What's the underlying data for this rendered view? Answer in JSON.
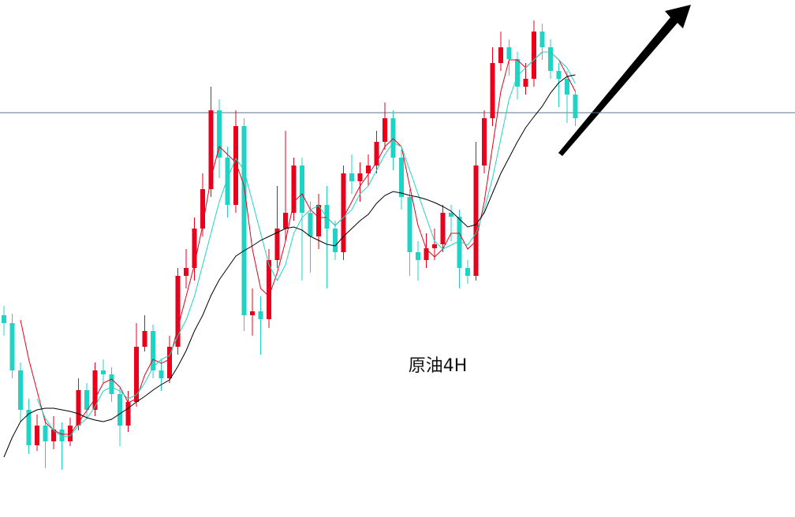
{
  "chart_data": {
    "type": "candlestick",
    "annotation": "原油4H",
    "ylim": [
      0,
      656
    ],
    "up_color": "#e8001c",
    "down_color": "#1fd4c4",
    "reference_line": 513,
    "reference_color": "#5a7490",
    "open": [
      256,
      246,
      186,
      136,
      91,
      116,
      96,
      111,
      96,
      116,
      161,
      136,
      186,
      181,
      156,
      116,
      146,
      216,
      236,
      186,
      176,
      216,
      306,
      316,
      366,
      416,
      516,
      456,
      396,
      496,
      256,
      261,
      251,
      326,
      366,
      386,
      446,
      386,
      356,
      396,
      366,
      336,
      436,
      426,
      436,
      446,
      476,
      506,
      456,
      406,
      336,
      326,
      341,
      346,
      386,
      381,
      316,
      306,
      446,
      506,
      576,
      596,
      581,
      546,
      556,
      616,
      596,
      566,
      556,
      536
    ],
    "high": [
      268,
      258,
      196,
      150,
      130,
      124,
      128,
      120,
      126,
      176,
      170,
      196,
      200,
      190,
      164,
      160,
      246,
      256,
      244,
      200,
      230,
      316,
      340,
      380,
      436,
      546,
      530,
      470,
      516,
      506,
      290,
      280,
      340,
      420,
      490,
      456,
      456,
      400,
      410,
      420,
      376,
      446,
      460,
      450,
      460,
      490,
      526,
      516,
      466,
      416,
      350,
      360,
      366,
      396,
      396,
      390,
      326,
      476,
      516,
      596,
      616,
      606,
      590,
      576,
      630,
      626,
      606,
      576,
      566,
      540
    ],
    "low": [
      230,
      176,
      120,
      80,
      84,
      62,
      86,
      60,
      90,
      110,
      124,
      128,
      170,
      146,
      90,
      108,
      140,
      210,
      176,
      160,
      170,
      206,
      290,
      300,
      356,
      406,
      430,
      380,
      386,
      236,
      230,
      206,
      240,
      316,
      350,
      376,
      300,
      310,
      340,
      290,
      326,
      326,
      410,
      400,
      420,
      436,
      466,
      440,
      390,
      306,
      300,
      316,
      326,
      336,
      350,
      290,
      296,
      300,
      436,
      496,
      566,
      560,
      530,
      536,
      546,
      580,
      556,
      520,
      500,
      496
    ],
    "close": [
      246,
      186,
      136,
      91,
      116,
      96,
      111,
      96,
      116,
      161,
      136,
      186,
      181,
      156,
      116,
      146,
      216,
      236,
      186,
      176,
      216,
      306,
      316,
      366,
      416,
      516,
      456,
      396,
      496,
      256,
      261,
      251,
      326,
      366,
      386,
      446,
      386,
      356,
      396,
      366,
      336,
      436,
      426,
      436,
      446,
      476,
      506,
      456,
      406,
      336,
      326,
      341,
      346,
      386,
      381,
      316,
      306,
      446,
      506,
      576,
      596,
      581,
      546,
      556,
      616,
      596,
      566,
      556,
      536,
      506
    ],
    "lines": [
      {
        "color": "#e8001c",
        "values": [
          null,
          null,
          250,
          200,
          160,
          120,
          110,
          105,
          105,
          120,
          135,
          150,
          170,
          175,
          165,
          145,
          150,
          180,
          200,
          195,
          200,
          240,
          280,
          320,
          370,
          430,
          470,
          460,
          450,
          420,
          340,
          290,
          280,
          310,
          350,
          400,
          410,
          390,
          380,
          380,
          370,
          380,
          400,
          420,
          435,
          450,
          470,
          480,
          470,
          420,
          370,
          340,
          330,
          340,
          360,
          360,
          340,
          350,
          400,
          470,
          540,
          580,
          580,
          570,
          580,
          590,
          590,
          580,
          560,
          540
        ]
      },
      {
        "color": "#1fd4c4",
        "values": [
          null,
          null,
          null,
          null,
          150,
          125,
          110,
          102,
          103,
          116,
          125,
          140,
          160,
          165,
          160,
          150,
          155,
          170,
          190,
          200,
          205,
          230,
          250,
          280,
          320,
          360,
          400,
          430,
          455,
          440,
          400,
          360,
          320,
          300,
          320,
          360,
          380,
          390,
          395,
          380,
          370,
          380,
          390,
          410,
          420,
          440,
          460,
          475,
          470,
          440,
          410,
          380,
          350,
          340,
          345,
          350,
          345,
          360,
          390,
          430,
          480,
          530,
          560,
          570,
          580,
          590,
          590,
          580,
          570,
          550
        ]
      },
      {
        "color": "#000000",
        "values": [
          76,
          101,
          121,
          131,
          136,
          138,
          138,
          136,
          134,
          131,
          126,
          123,
          121,
          124,
          131,
          138,
          146,
          153,
          161,
          168,
          174,
          191,
          211,
          236,
          256,
          281,
          301,
          316,
          331,
          338,
          344,
          351,
          356,
          361,
          366,
          368,
          364,
          356,
          351,
          346,
          344,
          356,
          366,
          376,
          384,
          398,
          408,
          413,
          411,
          408,
          406,
          403,
          399,
          394,
          388,
          378,
          368,
          371,
          386,
          411,
          436,
          456,
          476,
          494,
          508,
          521,
          538,
          551,
          559,
          561
        ]
      }
    ]
  }
}
